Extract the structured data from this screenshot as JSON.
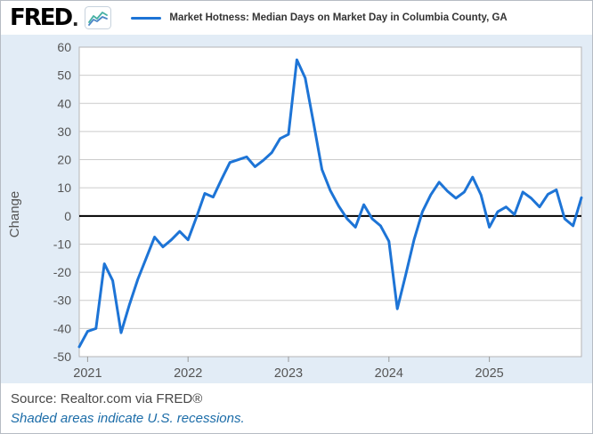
{
  "header": {
    "logo_text": "FRED",
    "logo_dot": ".",
    "legend_label": "Market Hotness: Median Days on Market Day in Columbia County, GA"
  },
  "footer": {
    "source": "Source: Realtor.com via FRED®",
    "note": "Shaded areas indicate U.S. recessions."
  },
  "colors": {
    "series": "#1d74d6",
    "chart_bg": "#e2ecf6",
    "plot_bg": "#ffffff",
    "plot_border": "#b5b5b5",
    "grid": "#cbcbcb",
    "zero_line": "#000000",
    "axis_text": "#555555",
    "tick_mark": "#999999",
    "note_text": "#1b6ca8",
    "source_text": "#474747"
  },
  "chart_data": {
    "type": "line",
    "title": "Market Hotness: Median Days on Market Day in Columbia County, GA",
    "xlabel": "",
    "ylabel": "Change",
    "ylim": [
      -50,
      60
    ],
    "y_tick_step": 10,
    "y_tick_labels": [
      "-50",
      "-40",
      "-30",
      "-20",
      "-10",
      "0",
      "10",
      "20",
      "30",
      "40",
      "50",
      "60"
    ],
    "grid": true,
    "legend_position": "top-left",
    "frequency": "monthly",
    "x_tick_labels": [
      "2021",
      "2022",
      "2023",
      "2024",
      "2025"
    ],
    "x_ticks": [
      {
        "index": 1,
        "label": "2021"
      },
      {
        "index": 13,
        "label": "2022"
      },
      {
        "index": 25,
        "label": "2023"
      },
      {
        "index": 37,
        "label": "2024"
      },
      {
        "index": 49,
        "label": "2025"
      }
    ],
    "series": [
      {
        "name": "Market Hotness: Median Days on Market Day in Columbia County, GA",
        "color": "#1d74d6",
        "x": [
          "2020-12",
          "2021-01",
          "2021-02",
          "2021-03",
          "2021-04",
          "2021-05",
          "2021-06",
          "2021-07",
          "2021-08",
          "2021-09",
          "2021-10",
          "2021-11",
          "2021-12",
          "2022-01",
          "2022-02",
          "2022-03",
          "2022-04",
          "2022-05",
          "2022-06",
          "2022-07",
          "2022-08",
          "2022-09",
          "2022-10",
          "2022-11",
          "2022-12",
          "2023-01",
          "2023-02",
          "2023-03",
          "2023-04",
          "2023-05",
          "2023-06",
          "2023-07",
          "2023-08",
          "2023-09",
          "2023-10",
          "2023-11",
          "2023-12",
          "2024-01",
          "2024-02",
          "2024-03",
          "2024-04",
          "2024-05",
          "2024-06",
          "2024-07",
          "2024-08",
          "2024-09",
          "2024-10",
          "2024-11",
          "2024-12",
          "2025-01",
          "2025-02",
          "2025-03",
          "2025-04",
          "2025-05",
          "2025-06",
          "2025-07",
          "2025-08",
          "2025-09",
          "2025-10",
          "2025-11",
          "2025-12"
        ],
        "values": [
          -46.5,
          -41,
          -40,
          -17,
          -23,
          -41.5,
          -31.5,
          -22.5,
          -15,
          -7.5,
          -11,
          -8.5,
          -5.5,
          -8.5,
          -0.5,
          8,
          6.7,
          13,
          19,
          20,
          21,
          17.5,
          19.8,
          22.5,
          27.5,
          29,
          55.5,
          49,
          33,
          16.5,
          9,
          3.5,
          -1,
          -4,
          4,
          -1,
          -3.5,
          -9,
          -33,
          -21,
          -8.5,
          1.5,
          7.5,
          12,
          8.8,
          6.3,
          8.5,
          13.8,
          7.5,
          -4,
          1.5,
          3.2,
          0.5,
          8.5,
          6.3,
          3.2,
          7.7,
          9.3,
          -1,
          -3.5,
          6.5
        ]
      }
    ]
  }
}
